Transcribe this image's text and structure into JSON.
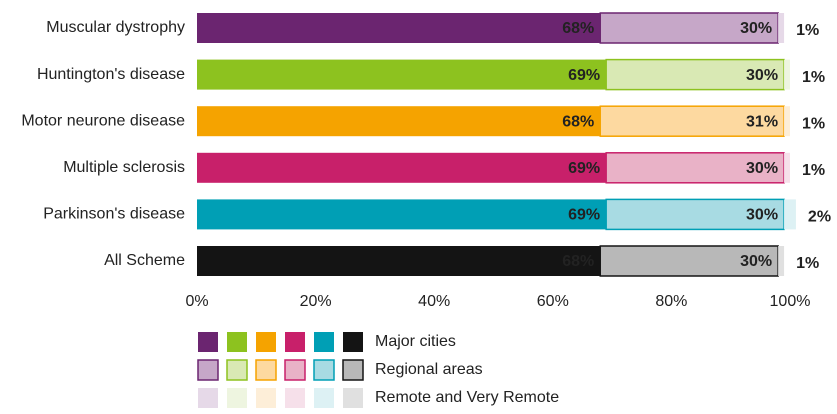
{
  "chart_data": {
    "type": "stacked-bar-horizontal",
    "categories": [
      "Muscular dystrophy",
      "Huntington's disease",
      "Motor neurone disease",
      "Multiple sclerosis",
      "Parkinson's disease",
      "All Scheme"
    ],
    "series": [
      {
        "name": "Major cities",
        "colors": [
          "#6b2570",
          "#8dc21f",
          "#f5a300",
          "#c8206a",
          "#009fb5",
          "#141414"
        ],
        "values": [
          68,
          69,
          68,
          69,
          69,
          68
        ],
        "value_labels": [
          "68%",
          "69%",
          "68%",
          "69%",
          "69%",
          "68%"
        ]
      },
      {
        "name": "Regional areas",
        "colors": [
          "#c6a7c8",
          "#d9e9b4",
          "#fdd9a0",
          "#e9b2c7",
          "#a8dbe3",
          "#b8b8b8"
        ],
        "values": [
          30,
          30,
          31,
          30,
          30,
          30
        ],
        "value_labels": [
          "30%",
          "30%",
          "31%",
          "30%",
          "30%",
          "30%"
        ]
      },
      {
        "name": "Remote and Very Remote",
        "colors": [
          "#e6d9e8",
          "#eef5e0",
          "#fdeed8",
          "#f6e0ea",
          "#ddf1f4",
          "#e0e0e0"
        ],
        "values": [
          1,
          1,
          1,
          1,
          2,
          1
        ],
        "value_labels": [
          "1%",
          "1%",
          "1%",
          "1%",
          "2%",
          "1%"
        ]
      }
    ],
    "xlim": [
      0,
      100
    ],
    "xticks": [
      {
        "value": 0,
        "label": "0%"
      },
      {
        "value": 20,
        "label": "20%"
      },
      {
        "value": 40,
        "label": "40%"
      },
      {
        "value": 60,
        "label": "60%"
      },
      {
        "value": 80,
        "label": "80%"
      },
      {
        "value": 100,
        "label": "100%"
      }
    ]
  }
}
